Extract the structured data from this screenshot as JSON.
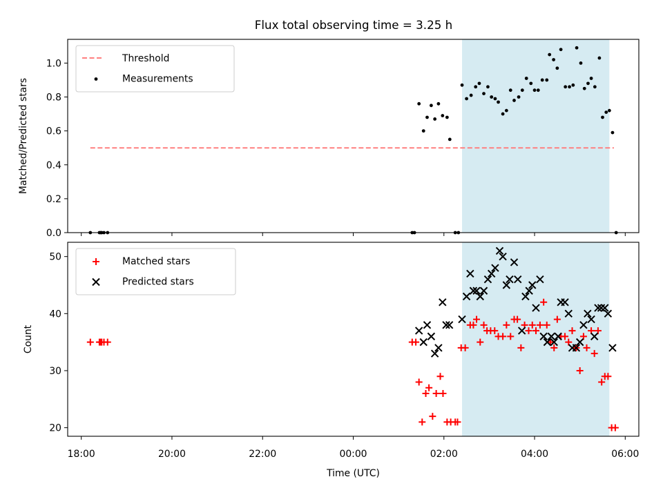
{
  "title": "Flux total observing time = 3.25 h",
  "colors": {
    "threshold": "#ff7f7f",
    "measurement": "#000000",
    "matched": "#ff0000",
    "predicted": "#000000",
    "shade": "#add8e6"
  },
  "chart_data": [
    {
      "type": "scatter",
      "ylabel": "Matched/Predicted stars",
      "xlim": [
        -6.3,
        6.3
      ],
      "ylim": [
        0,
        1.14
      ],
      "yticks": [
        0.0,
        0.2,
        0.4,
        0.6,
        0.8,
        1.0
      ],
      "ytick_labels": [
        "0.0",
        "0.2",
        "0.4",
        "0.6",
        "0.8",
        "1.0"
      ],
      "shaded_interval": [
        2.4,
        5.65
      ],
      "grid": false,
      "legend_position": "upper-left",
      "series": [
        {
          "name": "Threshold",
          "kind": "dashed-line",
          "points": [
            [
              -5.8,
              0.5
            ],
            [
              5.75,
              0.5
            ]
          ]
        },
        {
          "name": "Measurements",
          "kind": "dot",
          "points": [
            [
              -5.8,
              0
            ],
            [
              -5.6,
              0
            ],
            [
              -5.57,
              0
            ],
            [
              -5.55,
              0
            ],
            [
              -5.5,
              0
            ],
            [
              -5.42,
              0
            ],
            [
              1.3,
              0
            ],
            [
              1.35,
              0
            ],
            [
              1.45,
              0.76
            ],
            [
              1.55,
              0.6
            ],
            [
              1.63,
              0.68
            ],
            [
              1.72,
              0.75
            ],
            [
              1.8,
              0.67
            ],
            [
              1.88,
              0.76
            ],
            [
              1.97,
              0.69
            ],
            [
              2.07,
              0.68
            ],
            [
              2.13,
              0.55
            ],
            [
              2.25,
              0
            ],
            [
              2.32,
              0
            ],
            [
              2.4,
              0.87
            ],
            [
              2.5,
              0.79
            ],
            [
              2.6,
              0.81
            ],
            [
              2.7,
              0.86
            ],
            [
              2.78,
              0.88
            ],
            [
              2.88,
              0.82
            ],
            [
              2.97,
              0.86
            ],
            [
              3.05,
              0.8
            ],
            [
              3.13,
              0.79
            ],
            [
              3.2,
              0.77
            ],
            [
              3.3,
              0.7
            ],
            [
              3.38,
              0.72
            ],
            [
              3.47,
              0.84
            ],
            [
              3.55,
              0.78
            ],
            [
              3.65,
              0.8
            ],
            [
              3.73,
              0.84
            ],
            [
              3.82,
              0.91
            ],
            [
              3.92,
              0.88
            ],
            [
              4.0,
              0.84
            ],
            [
              4.08,
              0.84
            ],
            [
              4.17,
              0.9
            ],
            [
              4.27,
              0.9
            ],
            [
              4.33,
              1.05
            ],
            [
              4.42,
              1.02
            ],
            [
              4.5,
              0.97
            ],
            [
              4.58,
              1.08
            ],
            [
              4.68,
              0.86
            ],
            [
              4.77,
              0.86
            ],
            [
              4.85,
              0.87
            ],
            [
              4.93,
              1.09
            ],
            [
              5.02,
              1.0
            ],
            [
              5.1,
              0.85
            ],
            [
              5.18,
              0.88
            ],
            [
              5.25,
              0.91
            ],
            [
              5.33,
              0.86
            ],
            [
              5.43,
              1.03
            ],
            [
              5.5,
              0.68
            ],
            [
              5.58,
              0.71
            ],
            [
              5.65,
              0.72
            ],
            [
              5.72,
              0.59
            ],
            [
              5.8,
              0
            ]
          ]
        }
      ]
    },
    {
      "type": "scatter",
      "xlabel": "Time (UTC)",
      "ylabel": "Count",
      "xlim": [
        -6.3,
        6.3
      ],
      "ylim": [
        18.5,
        52.5
      ],
      "xticks": [
        -6,
        -4,
        -2,
        0,
        2,
        4,
        6
      ],
      "xtick_labels": [
        "18:00",
        "20:00",
        "22:00",
        "00:00",
        "02:00",
        "04:00",
        "06:00"
      ],
      "yticks": [
        20,
        30,
        40,
        50
      ],
      "ytick_labels": [
        "20",
        "30",
        "40",
        "50"
      ],
      "shaded_interval": [
        2.4,
        5.65
      ],
      "grid": false,
      "legend_position": "upper-left",
      "series": [
        {
          "name": "Matched stars",
          "kind": "plus",
          "points": [
            [
              -5.8,
              35
            ],
            [
              -5.6,
              35
            ],
            [
              -5.57,
              35
            ],
            [
              -5.55,
              35
            ],
            [
              -5.5,
              35
            ],
            [
              -5.42,
              35
            ],
            [
              1.3,
              35
            ],
            [
              1.38,
              35
            ],
            [
              1.45,
              28
            ],
            [
              1.52,
              21
            ],
            [
              1.6,
              26
            ],
            [
              1.67,
              27
            ],
            [
              1.75,
              22
            ],
            [
              1.83,
              26
            ],
            [
              1.92,
              29
            ],
            [
              1.98,
              26
            ],
            [
              2.07,
              21
            ],
            [
              2.15,
              21
            ],
            [
              2.25,
              21
            ],
            [
              2.3,
              21
            ],
            [
              2.38,
              34
            ],
            [
              2.47,
              34
            ],
            [
              2.58,
              38
            ],
            [
              2.65,
              38
            ],
            [
              2.72,
              39
            ],
            [
              2.8,
              35
            ],
            [
              2.88,
              38
            ],
            [
              2.95,
              37
            ],
            [
              3.03,
              37
            ],
            [
              3.12,
              37
            ],
            [
              3.2,
              36
            ],
            [
              3.3,
              36
            ],
            [
              3.38,
              38
            ],
            [
              3.47,
              36
            ],
            [
              3.55,
              39
            ],
            [
              3.62,
              39
            ],
            [
              3.7,
              34
            ],
            [
              3.78,
              38
            ],
            [
              3.87,
              37
            ],
            [
              3.95,
              38
            ],
            [
              4.03,
              37
            ],
            [
              4.12,
              38
            ],
            [
              4.2,
              42
            ],
            [
              4.27,
              38
            ],
            [
              4.35,
              35
            ],
            [
              4.43,
              34
            ],
            [
              4.5,
              39
            ],
            [
              4.58,
              36
            ],
            [
              4.67,
              36
            ],
            [
              4.75,
              35
            ],
            [
              4.83,
              37
            ],
            [
              4.92,
              34
            ],
            [
              5.0,
              30
            ],
            [
              5.08,
              36
            ],
            [
              5.15,
              34
            ],
            [
              5.25,
              37
            ],
            [
              5.32,
              33
            ],
            [
              5.4,
              37
            ],
            [
              5.48,
              28
            ],
            [
              5.55,
              29
            ],
            [
              5.62,
              29
            ],
            [
              5.7,
              20
            ],
            [
              5.78,
              20
            ]
          ]
        },
        {
          "name": "Predicted stars",
          "kind": "cross",
          "points": [
            [
              1.45,
              37
            ],
            [
              1.55,
              35
            ],
            [
              1.63,
              38
            ],
            [
              1.72,
              36
            ],
            [
              1.8,
              33
            ],
            [
              1.88,
              34
            ],
            [
              1.97,
              42
            ],
            [
              2.05,
              38
            ],
            [
              2.12,
              38
            ],
            [
              2.4,
              39
            ],
            [
              2.5,
              43
            ],
            [
              2.58,
              47
            ],
            [
              2.65,
              44
            ],
            [
              2.72,
              44
            ],
            [
              2.8,
              43
            ],
            [
              2.88,
              44
            ],
            [
              2.97,
              46
            ],
            [
              3.05,
              47
            ],
            [
              3.13,
              48
            ],
            [
              3.23,
              51
            ],
            [
              3.3,
              50
            ],
            [
              3.38,
              45
            ],
            [
              3.45,
              46
            ],
            [
              3.55,
              49
            ],
            [
              3.63,
              46
            ],
            [
              3.72,
              37
            ],
            [
              3.8,
              43
            ],
            [
              3.88,
              44
            ],
            [
              3.95,
              45
            ],
            [
              4.03,
              41
            ],
            [
              4.12,
              46
            ],
            [
              4.2,
              36
            ],
            [
              4.28,
              35
            ],
            [
              4.37,
              36
            ],
            [
              4.43,
              35
            ],
            [
              4.52,
              36
            ],
            [
              4.58,
              42
            ],
            [
              4.67,
              42
            ],
            [
              4.75,
              40
            ],
            [
              4.83,
              34
            ],
            [
              4.92,
              34
            ],
            [
              5.0,
              35
            ],
            [
              5.08,
              38
            ],
            [
              5.17,
              40
            ],
            [
              5.25,
              39
            ],
            [
              5.32,
              36
            ],
            [
              5.4,
              41
            ],
            [
              5.47,
              41
            ],
            [
              5.55,
              41
            ],
            [
              5.62,
              40
            ],
            [
              5.72,
              34
            ]
          ]
        }
      ]
    }
  ]
}
